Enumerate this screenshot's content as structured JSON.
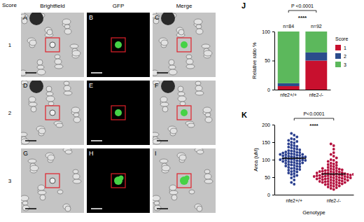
{
  "image_grid": {
    "row_head_title": "Score",
    "column_heads": [
      "Brightfield",
      "GFP",
      "Merge"
    ],
    "row_labels": [
      "1",
      "2",
      "3"
    ],
    "panel_letters": [
      [
        "A",
        "B",
        "C"
      ],
      [
        "D",
        "E",
        "F"
      ],
      [
        "G",
        "H",
        "I"
      ]
    ]
  },
  "chart_data": [
    {
      "type": "bar",
      "panel_label": "J",
      "stacked": true,
      "categories": [
        "nfe2+/+",
        "nfe2-/-"
      ],
      "series": [
        {
          "name": "1",
          "color": "#c8102e",
          "values": [
            6,
            50
          ]
        },
        {
          "name": "2",
          "color": "#2b4c8c",
          "values": [
            5,
            14
          ]
        },
        {
          "name": "3",
          "color": "#5cb85c",
          "values": [
            89,
            36
          ]
        }
      ],
      "ylim": [
        0,
        100
      ],
      "yticks": [
        0,
        50,
        100
      ],
      "y_label": "Relative ratio %",
      "legend": "right",
      "legend_title": "Score",
      "annotations": [
        {
          "text": "n=84",
          "category": "nfe2+/+"
        },
        {
          "text": "n=92",
          "category": "nfe2-/-"
        }
      ],
      "significance": {
        "label": "P <0.0001",
        "stars": "****"
      }
    },
    {
      "type": "strip",
      "panel_label": "K",
      "categories": [
        "nfe2+/+",
        "nfe2-/-"
      ],
      "colors": [
        "#2a3f8f",
        "#b5123f"
      ],
      "values": [
        [
          35,
          42,
          48,
          52,
          55,
          58,
          60,
          62,
          65,
          66,
          68,
          70,
          72,
          73,
          75,
          76,
          78,
          80,
          81,
          82,
          84,
          85,
          86,
          88,
          89,
          90,
          91,
          92,
          93,
          94,
          95,
          96,
          97,
          98,
          98,
          99,
          100,
          100,
          101,
          102,
          103,
          104,
          105,
          106,
          107,
          108,
          108,
          109,
          110,
          111,
          112,
          113,
          114,
          115,
          116,
          117,
          118,
          119,
          120,
          121,
          122,
          124,
          125,
          126,
          128,
          130,
          132,
          134,
          136,
          138,
          140,
          142,
          145,
          148,
          150,
          152,
          155,
          158,
          160,
          165,
          170,
          175,
          30,
          115
        ],
        [
          15,
          18,
          20,
          22,
          25,
          26,
          28,
          30,
          31,
          32,
          33,
          34,
          35,
          36,
          37,
          38,
          39,
          40,
          41,
          42,
          43,
          44,
          45,
          45,
          46,
          47,
          48,
          49,
          50,
          50,
          51,
          52,
          52,
          53,
          54,
          55,
          55,
          56,
          57,
          58,
          58,
          59,
          60,
          60,
          61,
          62,
          63,
          64,
          65,
          66,
          67,
          68,
          69,
          70,
          71,
          72,
          73,
          74,
          75,
          76,
          78,
          80,
          82,
          84,
          86,
          88,
          90,
          92,
          95,
          98,
          100,
          105,
          110,
          115,
          120,
          130,
          140,
          145,
          24,
          38,
          48,
          56,
          62,
          44,
          52,
          35,
          29,
          58,
          66,
          41,
          54,
          47
        ]
      ],
      "means": [
        104,
        59
      ],
      "ylim": [
        0,
        200
      ],
      "yticks": [
        0,
        50,
        100,
        150,
        200
      ],
      "y_label": "Area (uM)",
      "x_label": "Genotype",
      "significance": {
        "label": "P<0.0001",
        "stars": "****"
      }
    }
  ]
}
